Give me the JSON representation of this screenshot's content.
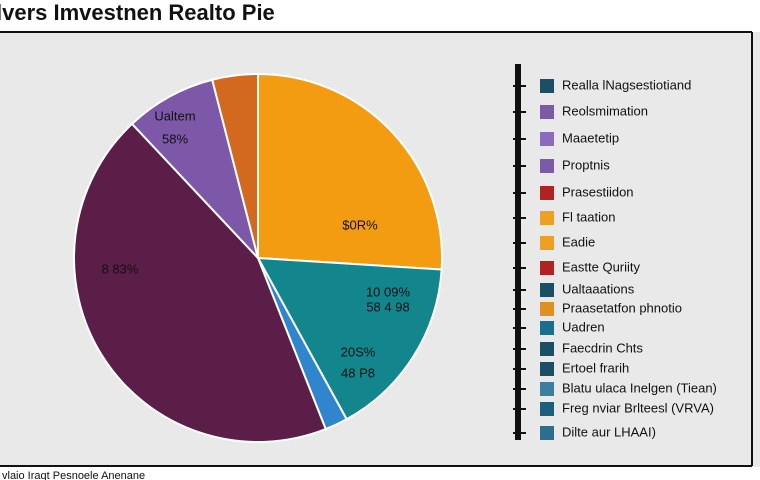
{
  "chart_data": {
    "type": "pie",
    "title": "lvers Imvestnen Realto Pie",
    "values": [
      26,
      16,
      2,
      44,
      8,
      4
    ],
    "colors": [
      "#f39c12",
      "#12858d",
      "#2f86cc",
      "#5a1e48",
      "#7e58a8",
      "#d2691e"
    ],
    "annotations": [
      "Ualtem",
      "58%",
      "$0R%",
      "8 83%",
      "10 09%",
      "58 4 98",
      "20S%",
      "48 P8"
    ],
    "legend": [
      {
        "name": "Realla lNagsestiotiand",
        "color": "#1a4f66"
      },
      {
        "name": "Reolsmimation",
        "color": "#7b5aa6"
      },
      {
        "name": "Maaetetip",
        "color": "#8a6bbd"
      },
      {
        "name": "Proptnis",
        "color": "#7b5aa6"
      },
      {
        "name": "Prasestiidon",
        "color": "#b22222"
      },
      {
        "name": "Fl taation",
        "color": "#f0a020"
      },
      {
        "name": "Eadie",
        "color": "#f0a020"
      },
      {
        "name": "Eastte Quriity",
        "color": "#b22222"
      },
      {
        "name": "Ualtaaations",
        "color": "#1a4f66"
      },
      {
        "name": "Praasetatfon phnotio",
        "color": "#e09020"
      },
      {
        "name": "Uadren",
        "color": "#1a6f8f"
      },
      {
        "name": "Faecdrin Chts",
        "color": "#1a4f66"
      },
      {
        "name": "Ertoel frarih",
        "color": "#1a4f66"
      },
      {
        "name": "Blatu ulaca Inelgen (Tiean)",
        "color": "#3a7fa0"
      },
      {
        "name": "Freg nviar Brlteesl (VRVA)",
        "color": "#1a5f80"
      },
      {
        "name": "Dilte aur LHAAI)",
        "color": "#2a6f90"
      }
    ],
    "footer": "vlaio Iraqt Pesnoele Anenane"
  }
}
